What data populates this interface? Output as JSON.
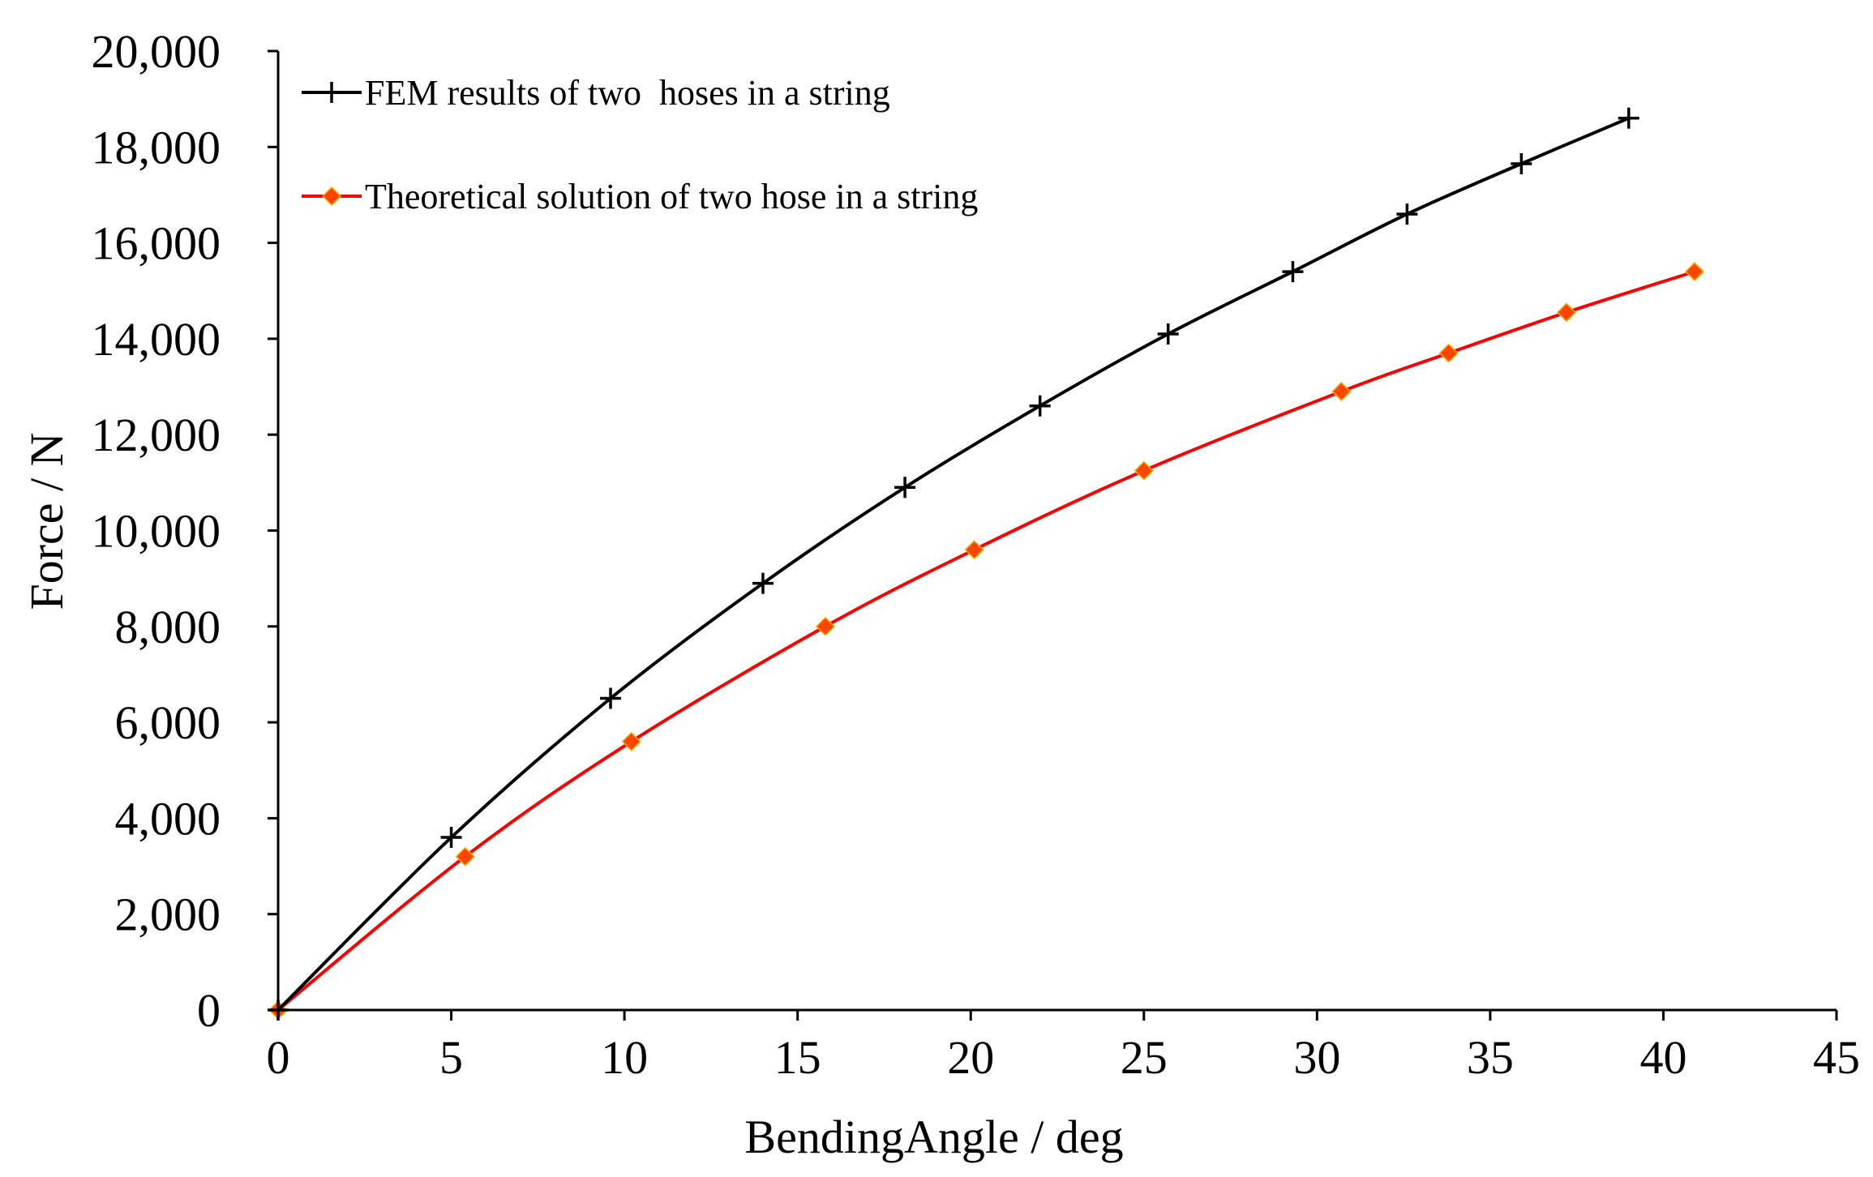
{
  "chart_data": {
    "type": "line",
    "title": "",
    "xlabel": "BendingAngle / deg",
    "ylabel": "Force / N",
    "xlim": [
      0,
      45
    ],
    "ylim": [
      0,
      20000
    ],
    "x_ticks": [
      0,
      5,
      10,
      15,
      20,
      25,
      30,
      35,
      40,
      45
    ],
    "y_ticks": [
      0,
      2000,
      4000,
      6000,
      8000,
      10000,
      12000,
      14000,
      16000,
      18000,
      20000
    ],
    "x_tick_labels": [
      "0",
      "5",
      "10",
      "15",
      "20",
      "25",
      "30",
      "35",
      "40",
      "45"
    ],
    "y_tick_labels": [
      "0",
      "2,000",
      "4,000",
      "6,000",
      "8,000",
      "10,000",
      "12,000",
      "14,000",
      "16,000",
      "18,000",
      "20,000"
    ],
    "grid": false,
    "legend_position": "top-left",
    "series": [
      {
        "name": "FEM results of two  hoses in a string",
        "color": "#000000",
        "marker": "plus",
        "x": [
          0,
          5.0,
          9.6,
          14.0,
          18.1,
          22.0,
          25.7,
          29.3,
          32.6,
          35.9,
          39.0
        ],
        "y": [
          0,
          3600,
          6500,
          8900,
          10900,
          12600,
          14100,
          15400,
          16600,
          17650,
          18600
        ]
      },
      {
        "name": "Theoretical solution of two hose in a string",
        "color": "#ff0000",
        "marker_color": "#ff4500",
        "marker": "diamond",
        "x": [
          0,
          5.4,
          10.2,
          15.8,
          20.1,
          25.0,
          30.7,
          33.8,
          37.2,
          40.9
        ],
        "y": [
          0,
          3200,
          5600,
          8000,
          9600,
          11250,
          12900,
          13700,
          14550,
          15400
        ]
      }
    ]
  }
}
